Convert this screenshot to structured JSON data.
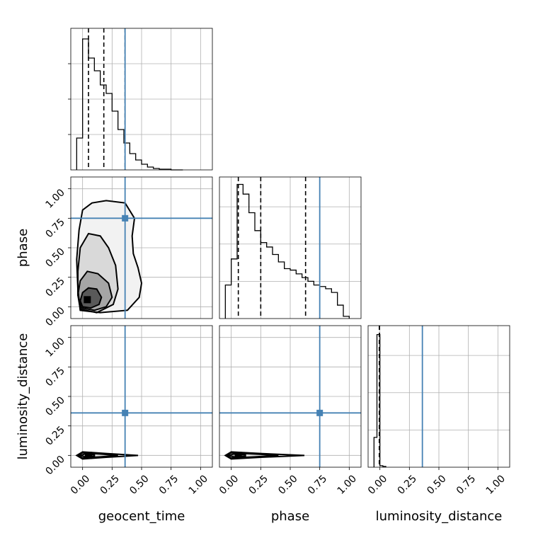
{
  "chart_data": {
    "type": "corner",
    "parameters": [
      "geocent_time",
      "phase",
      "luminosity_distance"
    ],
    "axis_range": [
      -0.1,
      1.1
    ],
    "ticks": [
      0.0,
      0.25,
      0.5,
      0.75,
      1.0
    ],
    "tick_labels": [
      "0.00",
      "0.25",
      "0.50",
      "0.75",
      "1.00"
    ],
    "grid": true,
    "truths": {
      "geocent_time": 0.36,
      "phase": 0.75,
      "luminosity_distance": 0.36
    },
    "quantiles": {
      "geocent_time": [
        0.05,
        0.18,
        0.36
      ],
      "phase": [
        0.06,
        0.25,
        0.63
      ],
      "luminosity_distance": [
        -0.005,
        -0.005,
        -0.005
      ]
    },
    "histograms": {
      "geocent_time": {
        "bin_edges": [
          -0.05,
          0.0,
          0.05,
          0.1,
          0.15,
          0.2,
          0.25,
          0.3,
          0.35,
          0.4,
          0.45,
          0.5,
          0.55,
          0.6,
          0.65,
          0.7,
          0.75,
          0.8,
          0.85
        ],
        "counts": [
          45,
          185,
          158,
          140,
          120,
          108,
          83,
          57,
          38,
          23,
          14,
          8,
          4,
          2,
          1,
          1,
          0,
          0
        ]
      },
      "phase": {
        "bin_edges": [
          -0.05,
          0.0,
          0.05,
          0.1,
          0.15,
          0.2,
          0.25,
          0.3,
          0.35,
          0.4,
          0.45,
          0.5,
          0.55,
          0.6,
          0.65,
          0.7,
          0.75,
          0.8,
          0.85,
          0.9,
          0.95,
          1.0
        ],
        "counts": [
          45,
          80,
          180,
          167,
          142,
          118,
          102,
          96,
          86,
          76,
          67,
          65,
          60,
          55,
          50,
          45,
          43,
          40,
          35,
          18,
          3
        ]
      },
      "luminosity_distance": {
        "bin_edges": [
          -0.05,
          -0.025,
          0.0,
          0.025,
          0.05
        ],
        "counts": [
          40,
          178,
          2,
          1
        ]
      }
    },
    "joint": {
      "geocent_time_phase": {
        "mode": [
          0.04,
          0.06
        ],
        "contours": [
          [
            [
              0.0,
              0.0
            ],
            [
              0.07,
              -0.01
            ],
            [
              0.14,
              0.02
            ],
            [
              0.16,
              0.08
            ],
            [
              0.12,
              0.15
            ],
            [
              0.05,
              0.16
            ],
            [
              0.0,
              0.12
            ],
            [
              -0.02,
              0.05
            ]
          ],
          [
            [
              -0.01,
              -0.01
            ],
            [
              0.1,
              -0.03
            ],
            [
              0.2,
              0.0
            ],
            [
              0.25,
              0.08
            ],
            [
              0.22,
              0.2
            ],
            [
              0.13,
              0.28
            ],
            [
              0.04,
              0.3
            ],
            [
              -0.02,
              0.22
            ],
            [
              -0.04,
              0.1
            ]
          ],
          [
            [
              -0.02,
              -0.02
            ],
            [
              0.12,
              -0.05
            ],
            [
              0.26,
              0.02
            ],
            [
              0.3,
              0.15
            ],
            [
              0.28,
              0.35
            ],
            [
              0.22,
              0.5
            ],
            [
              0.15,
              0.6
            ],
            [
              0.05,
              0.62
            ],
            [
              -0.02,
              0.5
            ],
            [
              -0.04,
              0.3
            ],
            [
              -0.04,
              0.1
            ]
          ],
          [
            [
              -0.02,
              -0.03
            ],
            [
              0.15,
              -0.05
            ],
            [
              0.38,
              -0.03
            ],
            [
              0.48,
              0.08
            ],
            [
              0.5,
              0.2
            ],
            [
              0.47,
              0.33
            ],
            [
              0.43,
              0.45
            ],
            [
              0.42,
              0.6
            ],
            [
              0.44,
              0.75
            ],
            [
              0.36,
              0.88
            ],
            [
              0.2,
              0.9
            ],
            [
              0.08,
              0.88
            ],
            [
              0.0,
              0.82
            ],
            [
              -0.03,
              0.65
            ],
            [
              -0.05,
              0.4
            ],
            [
              -0.04,
              0.15
            ]
          ]
        ]
      },
      "geocent_time_luminosity_distance": {
        "mode": [
          0.05,
          0.0
        ],
        "contours": [
          [
            [
              -0.02,
              0.0
            ],
            [
              0.02,
              -0.012
            ],
            [
              0.1,
              -0.006
            ],
            [
              0.1,
              0.006
            ],
            [
              0.02,
              0.012
            ]
          ],
          [
            [
              -0.04,
              0.0
            ],
            [
              0.0,
              -0.022
            ],
            [
              0.15,
              -0.012
            ],
            [
              0.3,
              0.0
            ],
            [
              0.15,
              0.012
            ],
            [
              0.0,
              0.022
            ]
          ],
          [
            [
              -0.05,
              0.0
            ],
            [
              0.0,
              -0.03
            ],
            [
              0.2,
              -0.016
            ],
            [
              0.47,
              0.0
            ],
            [
              0.2,
              0.016
            ],
            [
              0.0,
              0.03
            ]
          ]
        ]
      },
      "phase_luminosity_distance": {
        "mode": [
          0.06,
          0.0
        ],
        "contours": [
          [
            [
              -0.02,
              0.0
            ],
            [
              0.02,
              -0.012
            ],
            [
              0.12,
              -0.006
            ],
            [
              0.12,
              0.006
            ],
            [
              0.02,
              0.012
            ]
          ],
          [
            [
              -0.04,
              0.0
            ],
            [
              0.0,
              -0.022
            ],
            [
              0.2,
              -0.012
            ],
            [
              0.4,
              0.0
            ],
            [
              0.2,
              0.012
            ],
            [
              0.0,
              0.022
            ]
          ],
          [
            [
              -0.05,
              0.0
            ],
            [
              0.0,
              -0.03
            ],
            [
              0.25,
              -0.016
            ],
            [
              0.62,
              0.0
            ],
            [
              0.25,
              0.016
            ],
            [
              0.0,
              0.03
            ]
          ]
        ]
      }
    }
  }
}
